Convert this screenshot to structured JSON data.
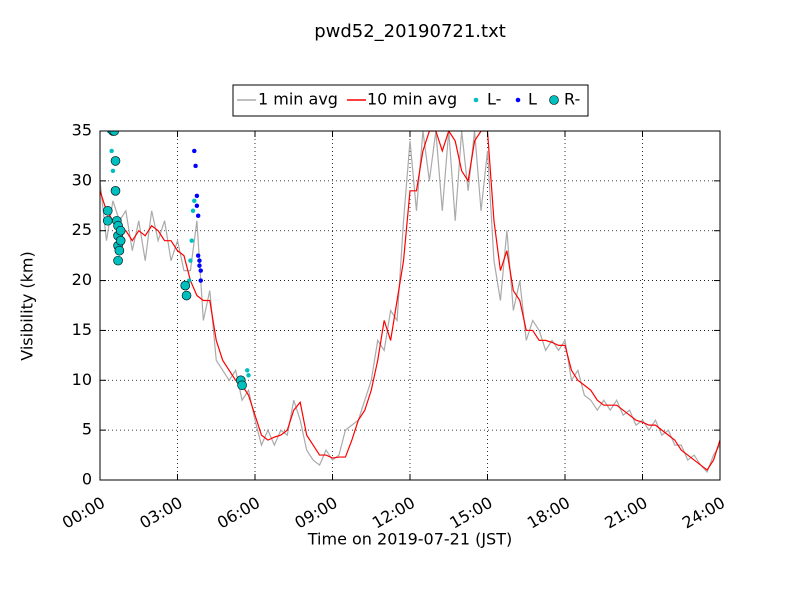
{
  "chart_data": {
    "type": "line",
    "title": "pwd52_20190721.txt",
    "x_label": "Time on 2019-07-21 (JST)",
    "y_label": "Visibility (km)",
    "xlim": [
      0,
      24
    ],
    "xticks": [
      {
        "value": 0,
        "label": "00:00"
      },
      {
        "value": 3,
        "label": "03:00"
      },
      {
        "value": 6,
        "label": "06:00"
      },
      {
        "value": 9,
        "label": "09:00"
      },
      {
        "value": 12,
        "label": "12:00"
      },
      {
        "value": 15,
        "label": "15:00"
      },
      {
        "value": 18,
        "label": "18:00"
      },
      {
        "value": 21,
        "label": "21:00"
      },
      {
        "value": 24,
        "label": "24:00"
      }
    ],
    "ylim": [
      0,
      35
    ],
    "yticks": [
      0,
      5,
      10,
      15,
      20,
      25,
      30,
      35
    ],
    "grid": true,
    "legend": "top",
    "x": [
      0,
      0.25,
      0.5,
      0.75,
      1,
      1.25,
      1.5,
      1.75,
      2,
      2.25,
      2.5,
      2.75,
      3,
      3.25,
      3.5,
      3.75,
      4,
      4.25,
      4.5,
      4.75,
      5,
      5.25,
      5.5,
      5.75,
      6,
      6.25,
      6.5,
      6.75,
      7,
      7.25,
      7.5,
      7.75,
      8,
      8.25,
      8.5,
      8.75,
      9,
      9.25,
      9.5,
      9.75,
      10,
      10.25,
      10.5,
      10.75,
      11,
      11.25,
      11.5,
      11.75,
      12,
      12.25,
      12.5,
      12.75,
      13,
      13.25,
      13.5,
      13.75,
      14,
      14.25,
      14.5,
      14.75,
      15,
      15.25,
      15.5,
      15.75,
      16,
      16.25,
      16.5,
      16.75,
      17,
      17.25,
      17.5,
      17.75,
      18,
      18.25,
      18.5,
      18.75,
      19,
      19.25,
      19.5,
      19.75,
      20,
      20.25,
      20.5,
      20.75,
      21,
      21.25,
      21.5,
      21.75,
      22,
      22.25,
      22.5,
      22.75,
      23,
      23.25,
      23.5,
      23.75,
      24
    ],
    "series": [
      {
        "name": "1 min avg",
        "type": "line",
        "color": "#aaaaaa",
        "values": [
          30,
          24,
          28,
          26,
          27,
          23,
          26,
          22,
          27,
          24,
          26,
          22,
          24,
          21,
          21,
          26,
          16,
          19,
          12,
          11,
          10,
          11,
          8,
          9,
          6,
          3.5,
          5,
          3.5,
          5,
          4.5,
          8,
          6,
          3,
          2,
          1.5,
          3,
          2,
          2.5,
          5,
          5.5,
          6,
          8,
          10,
          14,
          13,
          17,
          16,
          26,
          34,
          27,
          35,
          30,
          35,
          27,
          35,
          26,
          35,
          29,
          35,
          27,
          33,
          22,
          18,
          25,
          17,
          20,
          14,
          16,
          15,
          13,
          14,
          13,
          14,
          10,
          11,
          8.5,
          8,
          7,
          8,
          7,
          8,
          6.5,
          7,
          5.5,
          6,
          5,
          6,
          4.5,
          5,
          3.5,
          3.5,
          2,
          2.5,
          1.5,
          0.8,
          2.5,
          3.5
        ]
      },
      {
        "name": "10 min avg",
        "type": "line",
        "color": "#ff0000",
        "values": [
          29,
          27,
          26,
          25,
          25,
          24,
          25,
          24.5,
          25.5,
          25,
          24,
          24,
          23,
          22.5,
          20,
          18.5,
          18,
          18,
          14,
          12,
          11,
          10,
          9.5,
          8.5,
          6.5,
          4.5,
          4,
          4.3,
          4.5,
          5,
          7,
          7.8,
          4.5,
          3.5,
          2.5,
          2.5,
          2.2,
          2.3,
          2.3,
          4,
          6,
          7,
          9,
          12,
          16,
          14,
          18,
          22,
          29,
          29,
          33,
          35,
          35,
          33,
          35,
          34,
          31,
          30,
          34,
          35,
          35,
          26,
          21,
          23,
          19,
          18,
          15,
          15,
          14,
          14,
          13.8,
          13.5,
          13.5,
          11,
          10,
          9.5,
          9,
          8,
          7.5,
          7.5,
          7.5,
          7,
          6.5,
          6,
          5.8,
          5.5,
          5.5,
          5,
          4.5,
          4,
          3,
          2.5,
          2,
          1.5,
          1,
          2,
          4
        ]
      },
      {
        "name": "L-",
        "type": "scatter",
        "color": "#00bfbf",
        "x": [
          0.35,
          0.45,
          0.5,
          3.45,
          3.5,
          3.55,
          3.6,
          3.65,
          5.7,
          5.75
        ],
        "values": [
          35,
          33,
          31,
          20,
          22,
          24,
          27,
          28,
          11,
          10.5
        ]
      },
      {
        "name": "L",
        "type": "scatter",
        "color": "#0000ff",
        "x": [
          3.65,
          3.7,
          3.75,
          3.75,
          3.8,
          3.8,
          3.85,
          3.85,
          3.9,
          3.9
        ],
        "values": [
          33,
          31.5,
          28.5,
          27.5,
          26.5,
          22.5,
          22,
          21.5,
          21,
          20
        ]
      },
      {
        "name": "R-",
        "type": "scatter",
        "color": "#00bfbf",
        "x": [
          0.3,
          0.3,
          0.5,
          0.55,
          0.6,
          0.6,
          0.65,
          0.7,
          0.7,
          0.7,
          0.7,
          0.75,
          0.8,
          0.8,
          3.3,
          3.35,
          5.45,
          5.5
        ],
        "values": [
          27,
          26,
          35,
          35,
          32,
          29,
          26,
          25.5,
          24.5,
          23.5,
          22,
          23,
          25,
          24,
          19.5,
          18.5,
          10,
          9.5
        ]
      }
    ]
  }
}
